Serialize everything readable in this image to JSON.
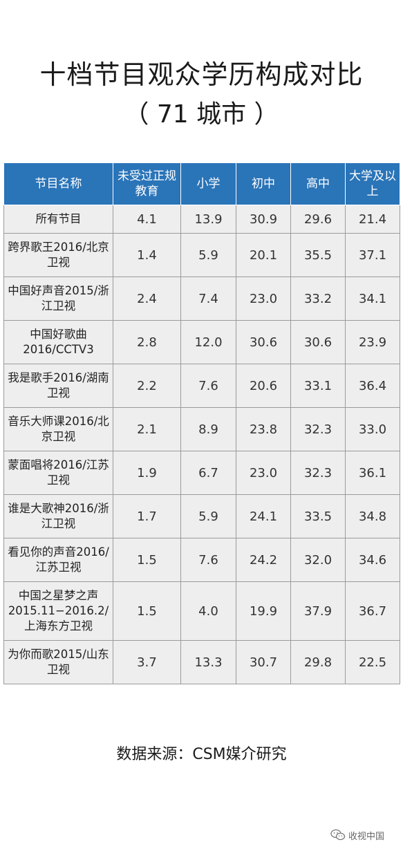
{
  "title": {
    "line1": "十档节目观众学历构成对比",
    "line2": "（ 71 城市 ）"
  },
  "chart_data": {
    "type": "table",
    "columns": [
      "节目名称",
      "未受过正规教育",
      "小学",
      "初中",
      "高中",
      "大学及以上"
    ],
    "rows": [
      {
        "name": "所有节目",
        "values": [
          "4.1",
          "13.9",
          "30.9",
          "29.6",
          "21.4"
        ]
      },
      {
        "name": "跨界歌王2016/北京卫视",
        "values": [
          "1.4",
          "5.9",
          "20.1",
          "35.5",
          "37.1"
        ]
      },
      {
        "name": "中国好声音2015/浙江卫视",
        "values": [
          "2.4",
          "7.4",
          "23.0",
          "33.2",
          "34.1"
        ]
      },
      {
        "name": "中国好歌曲2016/CCTV3",
        "values": [
          "2.8",
          "12.0",
          "30.6",
          "30.6",
          "23.9"
        ]
      },
      {
        "name": "我是歌手2016/湖南卫视",
        "values": [
          "2.2",
          "7.6",
          "20.6",
          "33.1",
          "36.4"
        ]
      },
      {
        "name": "音乐大师课2016/北京卫视",
        "values": [
          "2.1",
          "8.9",
          "23.8",
          "32.3",
          "33.0"
        ]
      },
      {
        "name": "蒙面唱将2016/江苏卫视",
        "values": [
          "1.9",
          "6.7",
          "23.0",
          "32.3",
          "36.1"
        ]
      },
      {
        "name": "谁是大歌神2016/浙江卫视",
        "values": [
          "1.7",
          "5.9",
          "24.1",
          "33.5",
          "34.8"
        ]
      },
      {
        "name": "看见你的声音2016/江苏卫视",
        "values": [
          "1.5",
          "7.6",
          "24.2",
          "32.0",
          "34.6"
        ]
      },
      {
        "name": "中国之星梦之声2015.11−2016.2/上海东方卫视",
        "values": [
          "1.5",
          "4.0",
          "19.9",
          "37.9",
          "36.7"
        ]
      },
      {
        "name": "为你而歌2015/山东卫视",
        "values": [
          "3.7",
          "13.3",
          "30.7",
          "29.8",
          "22.5"
        ]
      }
    ],
    "header_color": "#2a74b8",
    "cell_color": "#eeeeee"
  },
  "source": "数据来源：CSM媒介研究",
  "watermark": {
    "text": "收视中国",
    "icon": "wechat-icon"
  }
}
